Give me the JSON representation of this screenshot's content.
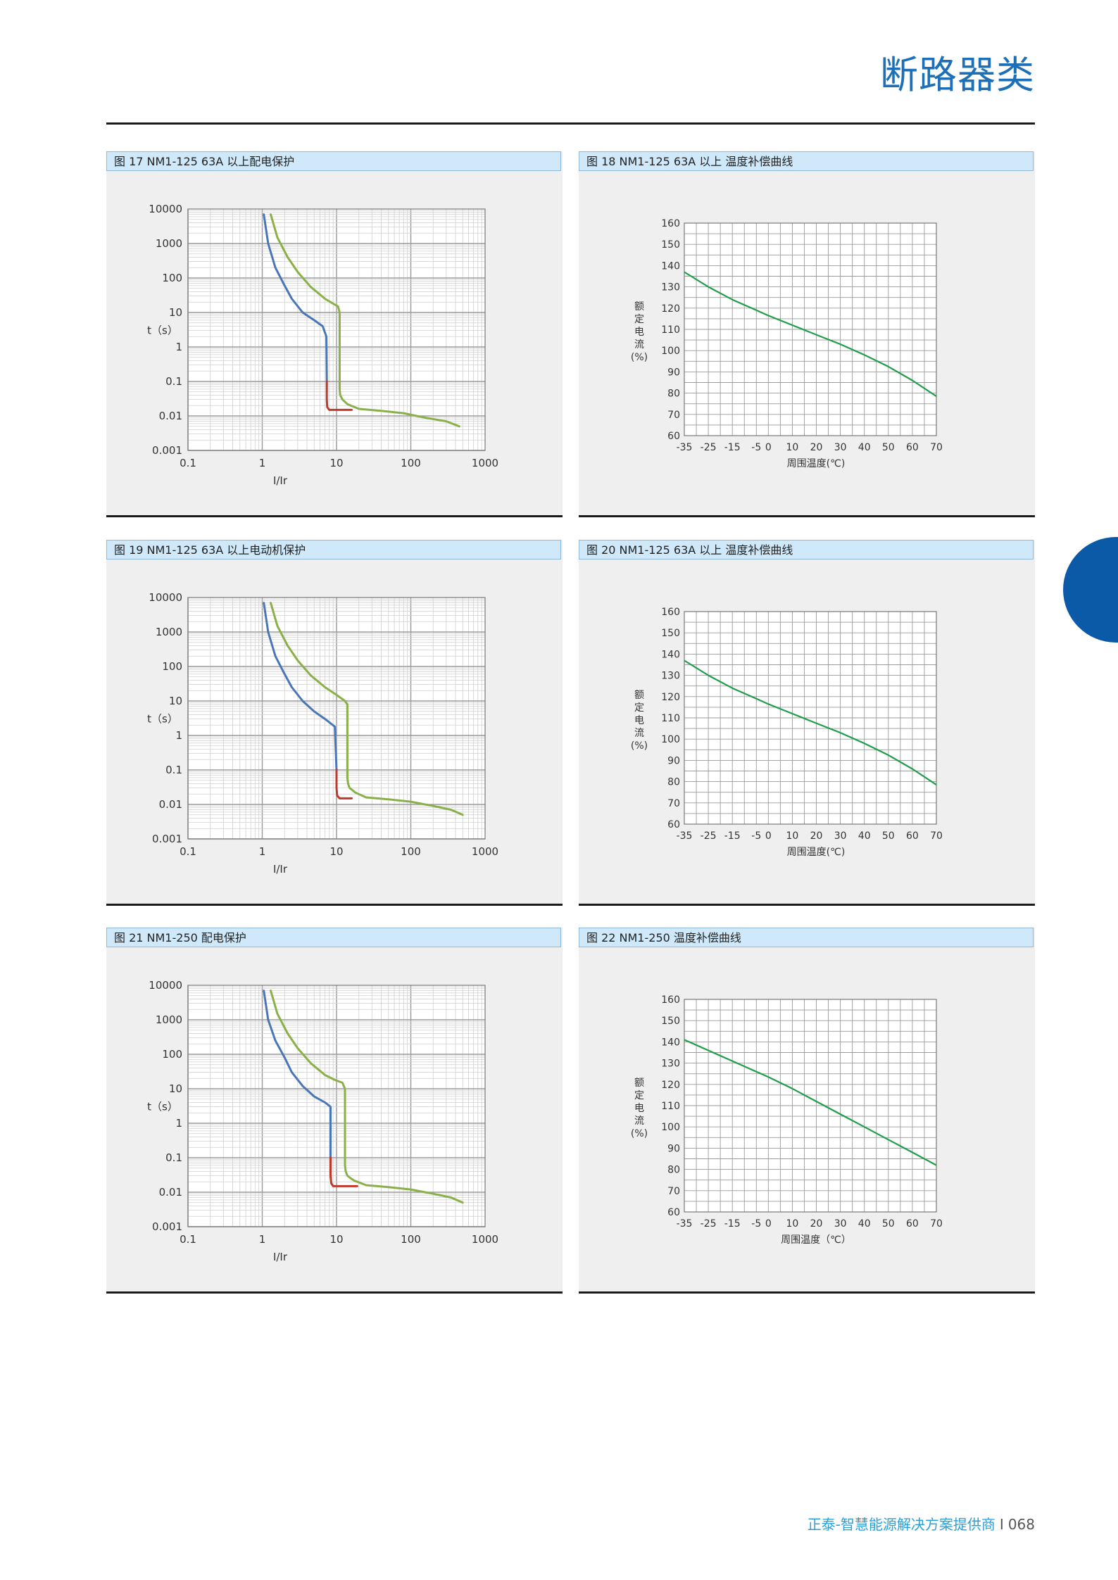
{
  "header": {
    "title": "断路器类"
  },
  "footer": {
    "tagline": "正泰-智慧能源解决方案提供商",
    "separator": "I",
    "page": "068"
  },
  "chart_data": [
    {
      "caption": "图 17 NM1-125 63A 以上配电保护",
      "type": "line",
      "xscale": "log",
      "yscale": "log",
      "xlabel": "I/Ir",
      "ylabel": "t（s）",
      "xticks": [
        "0.1",
        "1",
        "10",
        "100",
        "1000"
      ],
      "yticks": [
        "0.001",
        "0.01",
        "0.1",
        "1",
        "10",
        "100",
        "1000",
        "10000"
      ],
      "xlim": [
        0.1,
        1000
      ],
      "ylim": [
        0.001,
        10000
      ],
      "series": [
        {
          "color": "#4a76b8",
          "x": [
            1.05,
            1.2,
            1.5,
            2,
            2.5,
            3.5,
            5,
            6.5,
            7.3,
            7.4
          ],
          "y": [
            7000,
            1000,
            200,
            60,
            25,
            10,
            6,
            4,
            2,
            0.1
          ]
        },
        {
          "color": "#c0392b",
          "x": [
            7.4,
            7.4,
            7.5,
            8,
            9,
            16
          ],
          "y": [
            0.1,
            0.03,
            0.018,
            0.015,
            0.015,
            0.015
          ]
        },
        {
          "color": "#8ab04a",
          "x": [
            1.3,
            1.6,
            2.2,
            3,
            4.5,
            7,
            9,
            10.5,
            11,
            11,
            11.2,
            12,
            14,
            20,
            40,
            80,
            150,
            300,
            450
          ],
          "y": [
            7000,
            1500,
            400,
            150,
            55,
            25,
            18,
            15,
            10,
            0.06,
            0.04,
            0.03,
            0.022,
            0.016,
            0.014,
            0.012,
            0.009,
            0.007,
            0.005
          ]
        }
      ]
    },
    {
      "caption": "图 18 NM1-125 63A 以上 温度补偿曲线",
      "type": "line",
      "xlabel": "周围温度(℃)",
      "ylabel": "额定电流(%)",
      "xticks": [
        "-35",
        "-25",
        "-15",
        "-5",
        "0",
        "10",
        "20",
        "30",
        "40",
        "50",
        "60",
        "70"
      ],
      "yticks": [
        "60",
        "70",
        "80",
        "90",
        "100",
        "110",
        "120",
        "130",
        "140",
        "150",
        "160"
      ],
      "xlim": [
        -35,
        70
      ],
      "ylim": [
        60,
        160
      ],
      "series": [
        {
          "color": "#1f9e4a",
          "x": [
            -35,
            -25,
            -15,
            -5,
            0,
            10,
            20,
            30,
            40,
            50,
            60,
            70
          ],
          "y": [
            137,
            130,
            124,
            119,
            116.5,
            112,
            107.5,
            103,
            98,
            92.5,
            86,
            78.5
          ]
        }
      ]
    },
    {
      "caption": "图 19 NM1-125 63A 以上电动机保护",
      "type": "line",
      "xscale": "log",
      "yscale": "log",
      "xlabel": "I/Ir",
      "ylabel": "t（s）",
      "xticks": [
        "0.1",
        "1",
        "10",
        "100",
        "1000"
      ],
      "yticks": [
        "0.001",
        "0.01",
        "0.1",
        "1",
        "10",
        "100",
        "1000",
        "10000"
      ],
      "xlim": [
        0.1,
        1000
      ],
      "ylim": [
        0.001,
        10000
      ],
      "series": [
        {
          "color": "#4a76b8",
          "x": [
            1.05,
            1.2,
            1.5,
            2,
            2.5,
            3.5,
            5,
            7,
            9.5,
            10
          ],
          "y": [
            7000,
            1000,
            200,
            60,
            25,
            10,
            5,
            3,
            1.8,
            0.1
          ]
        },
        {
          "color": "#c0392b",
          "x": [
            10,
            10,
            10.2,
            11,
            12,
            16
          ],
          "y": [
            0.1,
            0.03,
            0.018,
            0.015,
            0.015,
            0.015
          ]
        },
        {
          "color": "#8ab04a",
          "x": [
            1.3,
            1.6,
            2.2,
            3,
            4.5,
            7,
            10,
            13,
            14,
            14,
            14.3,
            15,
            18,
            25,
            50,
            100,
            200,
            350,
            500
          ],
          "y": [
            7000,
            1500,
            400,
            150,
            55,
            25,
            15,
            10,
            8,
            0.06,
            0.04,
            0.03,
            0.022,
            0.016,
            0.014,
            0.012,
            0.009,
            0.007,
            0.005
          ]
        }
      ]
    },
    {
      "caption": "图 20 NM1-125 63A 以上 温度补偿曲线",
      "type": "line",
      "xlabel": "周围温度(℃)",
      "ylabel": "额定电流(%)",
      "xticks": [
        "-35",
        "-25",
        "-15",
        "-5",
        "0",
        "10",
        "20",
        "30",
        "40",
        "50",
        "60",
        "70"
      ],
      "yticks": [
        "60",
        "70",
        "80",
        "90",
        "100",
        "110",
        "120",
        "130",
        "140",
        "150",
        "160"
      ],
      "xlim": [
        -35,
        70
      ],
      "ylim": [
        60,
        160
      ],
      "series": [
        {
          "color": "#1f9e4a",
          "x": [
            -35,
            -25,
            -15,
            -5,
            0,
            10,
            20,
            30,
            40,
            50,
            60,
            70
          ],
          "y": [
            137,
            130,
            124,
            119,
            116.5,
            112,
            107.5,
            103,
            98,
            92.5,
            86,
            78.5
          ]
        }
      ]
    },
    {
      "caption": "图 21 NM1-250 配电保护",
      "type": "line",
      "xscale": "log",
      "yscale": "log",
      "xlabel": "I/Ir",
      "ylabel": "t（s）",
      "xticks": [
        "0.1",
        "1",
        "10",
        "100",
        "1000"
      ],
      "yticks": [
        "0.001",
        "0.01",
        "0.1",
        "1",
        "10",
        "100",
        "1000",
        "10000"
      ],
      "xlim": [
        0.1,
        1000
      ],
      "ylim": [
        0.001,
        10000
      ],
      "series": [
        {
          "color": "#4a76b8",
          "x": [
            1.05,
            1.2,
            1.5,
            2,
            2.5,
            3.5,
            5,
            7,
            8.3,
            8.3
          ],
          "y": [
            7000,
            1000,
            250,
            80,
            30,
            12,
            6,
            4,
            3,
            0.1
          ]
        },
        {
          "color": "#c0392b",
          "x": [
            8.3,
            8.3,
            8.5,
            9,
            11,
            19
          ],
          "y": [
            0.1,
            0.03,
            0.018,
            0.015,
            0.015,
            0.015
          ]
        },
        {
          "color": "#8ab04a",
          "x": [
            1.3,
            1.6,
            2.2,
            3,
            4.5,
            7,
            9.5,
            12,
            13,
            13,
            13.3,
            14,
            17,
            25,
            50,
            100,
            200,
            350,
            500
          ],
          "y": [
            7000,
            1500,
            400,
            150,
            55,
            25,
            18,
            15,
            10,
            0.06,
            0.04,
            0.03,
            0.022,
            0.016,
            0.014,
            0.012,
            0.009,
            0.007,
            0.005
          ]
        }
      ]
    },
    {
      "caption": "图 22 NM1-250 温度补偿曲线",
      "type": "line",
      "xlabel": "周围温度（℃）",
      "ylabel": "额定电流(%)",
      "xticks": [
        "-35",
        "-25",
        "-15",
        "-5",
        "0",
        "10",
        "20",
        "30",
        "40",
        "50",
        "60",
        "70"
      ],
      "yticks": [
        "60",
        "70",
        "80",
        "90",
        "100",
        "110",
        "120",
        "130",
        "140",
        "150",
        "160"
      ],
      "xlim": [
        -35,
        70
      ],
      "ylim": [
        60,
        160
      ],
      "series": [
        {
          "color": "#1f9e4a",
          "x": [
            -35,
            -25,
            -15,
            -5,
            0,
            10,
            20,
            30,
            40,
            50,
            60,
            70
          ],
          "y": [
            141,
            136,
            131,
            126,
            123.5,
            118,
            112,
            106,
            100,
            94,
            88,
            82
          ]
        }
      ]
    }
  ]
}
